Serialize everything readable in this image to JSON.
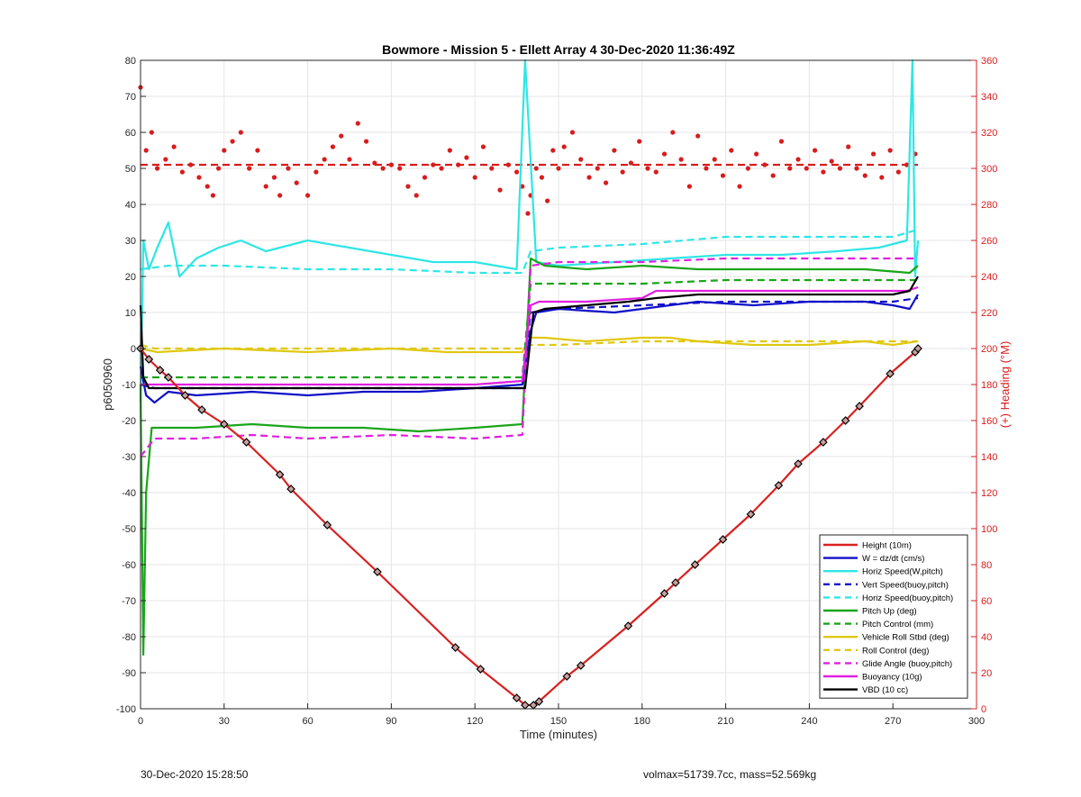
{
  "chart_data": {
    "type": "line",
    "title": "Bowmore - Mission 5 - Ellett Array 4 30-Dec-2020 11:36:49Z",
    "xlabel": "Time (minutes)",
    "ylabel_left": "p6050960",
    "ylabel_right": "(+) Heading (°M)",
    "xlim": [
      0,
      300
    ],
    "ylim_left": [
      -100,
      80
    ],
    "ylim_right": [
      0,
      360
    ],
    "xticks": [
      0,
      30,
      60,
      90,
      120,
      150,
      180,
      210,
      240,
      270,
      300
    ],
    "yticks_left": [
      -100,
      -90,
      -80,
      -70,
      -60,
      -50,
      -40,
      -30,
      -20,
      -10,
      0,
      10,
      20,
      30,
      40,
      50,
      60,
      70,
      80
    ],
    "yticks_right": [
      0,
      20,
      40,
      60,
      80,
      100,
      120,
      140,
      160,
      180,
      200,
      220,
      240,
      260,
      280,
      300,
      320,
      340,
      360
    ],
    "grid": true,
    "legend_position": "bottom-right",
    "colors": {
      "height": "#d92020",
      "w": "#1010c8",
      "horiz": "#2ee6e6",
      "pitch": "#1aa51a",
      "roll": "#e0c812",
      "glide": "#e020e0",
      "vbd": "#000000",
      "heading": "#d81c1c",
      "right_axis": "#d81c1c"
    },
    "series": [
      {
        "name": "Height (10m)",
        "style": "solid",
        "color": "#d92020",
        "x": [
          0,
          3,
          7,
          10,
          16,
          22,
          30,
          38,
          50,
          54,
          67,
          85,
          113,
          122,
          135,
          138,
          141,
          143,
          153,
          158,
          175,
          188,
          192,
          199,
          209,
          219,
          229,
          236,
          245,
          253,
          258,
          269,
          278,
          279
        ],
        "y": [
          0,
          -3,
          -6,
          -8,
          -13,
          -17,
          -21,
          -26,
          -35,
          -39,
          -49,
          -62,
          -83,
          -89,
          -97,
          -99,
          -99,
          -98,
          -91,
          -88,
          -77,
          -68,
          -65,
          -60,
          -53,
          -46,
          -38,
          -32,
          -26,
          -20,
          -16,
          -7,
          -1,
          0
        ]
      },
      {
        "name": "W = dz/dt (cm/s)",
        "style": "solid",
        "color": "#1010c8",
        "x": [
          0,
          2,
          5,
          10,
          20,
          40,
          60,
          80,
          100,
          120,
          137,
          140,
          142,
          150,
          170,
          190,
          200,
          220,
          240,
          260,
          270,
          276,
          279
        ],
        "y": [
          -5,
          -13,
          -15,
          -12,
          -13,
          -12,
          -13,
          -12,
          -12,
          -11,
          -10,
          5,
          10,
          11,
          10,
          12,
          13,
          12,
          13,
          13,
          12,
          11,
          15
        ]
      },
      {
        "name": "Horiz Speed(W,pitch)",
        "style": "solid",
        "color": "#2ee6e6",
        "x": [
          0,
          1,
          3,
          6,
          10,
          14,
          20,
          28,
          36,
          45,
          60,
          75,
          90,
          105,
          120,
          135,
          138,
          142,
          150,
          170,
          190,
          210,
          230,
          250,
          265,
          275,
          277,
          278,
          279
        ],
        "y": [
          -15,
          30,
          22,
          28,
          35,
          20,
          25,
          28,
          30,
          27,
          30,
          28,
          26,
          24,
          24,
          22,
          80,
          24,
          23,
          24,
          25,
          26,
          26,
          27,
          28,
          30,
          80,
          20,
          30
        ]
      },
      {
        "name": "Vert Speed(buoy,pitch)",
        "style": "dashed",
        "color": "#1010c8",
        "x": [
          0,
          5,
          30,
          60,
          90,
          120,
          137,
          140,
          150,
          180,
          210,
          240,
          270,
          279
        ],
        "y": [
          -10,
          -11,
          -11,
          -11,
          -11,
          -11,
          -11,
          10,
          11,
          12,
          13,
          13,
          13,
          14
        ]
      },
      {
        "name": "Horiz Speed(buoy,pitch)",
        "style": "dashed",
        "color": "#2ee6e6",
        "x": [
          0,
          10,
          30,
          60,
          90,
          120,
          137,
          140,
          150,
          180,
          210,
          240,
          270,
          279
        ],
        "y": [
          22,
          23,
          23,
          22,
          22,
          21,
          21,
          27,
          28,
          29,
          31,
          31,
          31,
          33
        ]
      },
      {
        "name": "Pitch Up (deg)",
        "style": "solid",
        "color": "#1aa51a",
        "x": [
          0,
          1,
          2,
          4,
          8,
          20,
          40,
          60,
          80,
          100,
          120,
          137,
          140,
          145,
          160,
          180,
          200,
          220,
          240,
          260,
          276,
          279
        ],
        "y": [
          -10,
          -85,
          -40,
          -22,
          -22,
          -22,
          -21,
          -22,
          -22,
          -23,
          -22,
          -21,
          25,
          23,
          22,
          23,
          22,
          22,
          22,
          22,
          21,
          23
        ]
      },
      {
        "name": "Pitch Control (mm)",
        "style": "dashed",
        "color": "#1aa51a",
        "x": [
          0,
          5,
          30,
          60,
          90,
          120,
          137,
          140,
          150,
          180,
          210,
          240,
          270,
          279
        ],
        "y": [
          -8,
          -8,
          -8,
          -8,
          -8,
          -8,
          -8,
          18,
          18,
          18,
          19,
          19,
          19,
          19
        ]
      },
      {
        "name": "Vehicle Roll Stbd (deg)",
        "style": "solid",
        "color": "#e0c812",
        "x": [
          0,
          6,
          30,
          60,
          90,
          110,
          137,
          140,
          145,
          160,
          180,
          190,
          200,
          220,
          240,
          260,
          270,
          279
        ],
        "y": [
          0,
          -1,
          0,
          -1,
          0,
          -1,
          -1,
          3,
          3,
          2,
          3,
          3,
          2,
          1,
          1,
          2,
          1,
          2
        ]
      },
      {
        "name": "Roll Control (deg)",
        "style": "dashed",
        "color": "#e0c812",
        "x": [
          0,
          5,
          30,
          60,
          90,
          120,
          137,
          140,
          150,
          180,
          210,
          240,
          270,
          279
        ],
        "y": [
          1,
          0,
          0,
          0,
          0,
          0,
          0,
          1,
          1,
          2,
          2,
          2,
          2,
          2
        ]
      },
      {
        "name": "Glide Angle (buoy,pitch)",
        "style": "dashed",
        "color": "#e020e0",
        "x": [
          0,
          5,
          20,
          40,
          60,
          90,
          120,
          137,
          140,
          150,
          180,
          210,
          240,
          270,
          279
        ],
        "y": [
          -30,
          -25,
          -25,
          -24,
          -25,
          -24,
          -25,
          -24,
          23,
          24,
          24,
          25,
          25,
          25,
          25
        ]
      },
      {
        "name": "Buoyancy (10g)",
        "style": "solid",
        "color": "#e020e0",
        "x": [
          0,
          2,
          10,
          60,
          100,
          120,
          137,
          140,
          143,
          160,
          180,
          185,
          220,
          260,
          275,
          279
        ],
        "y": [
          -10,
          -10,
          -10,
          -10,
          -10,
          -10,
          -9,
          12,
          13,
          13,
          14,
          16,
          16,
          16,
          16,
          17
        ]
      },
      {
        "name": "VBD (10 cc)",
        "style": "solid",
        "color": "#000000",
        "x": [
          0,
          1,
          3,
          10,
          50,
          100,
          137,
          138,
          141,
          145,
          175,
          185,
          200,
          270,
          276,
          279
        ],
        "y": [
          12,
          -8,
          -11,
          -11,
          -11,
          -11,
          -11,
          -11,
          10,
          11,
          13,
          14,
          15,
          15,
          16,
          20
        ]
      },
      {
        "name": "Heading",
        "axis": "right",
        "style": "points",
        "color": "#d81c1c",
        "x": [
          0,
          2,
          4,
          6,
          9,
          12,
          15,
          18,
          21,
          24,
          26,
          28,
          30,
          33,
          36,
          39,
          42,
          45,
          48,
          50,
          53,
          56,
          60,
          63,
          66,
          69,
          72,
          75,
          78,
          81,
          84,
          87,
          90,
          93,
          96,
          99,
          102,
          105,
          108,
          111,
          114,
          117,
          120,
          123,
          126,
          129,
          132,
          135,
          137,
          139,
          140,
          142,
          144,
          146,
          148,
          150,
          152,
          155,
          158,
          161,
          164,
          167,
          170,
          173,
          176,
          179,
          182,
          185,
          188,
          191,
          194,
          197,
          200,
          203,
          206,
          209,
          212,
          215,
          218,
          221,
          224,
          227,
          230,
          233,
          236,
          239,
          242,
          245,
          248,
          251,
          254,
          257,
          260,
          263,
          266,
          269,
          272,
          275,
          278
        ],
        "y": [
          345,
          310,
          320,
          300,
          305,
          312,
          298,
          302,
          295,
          290,
          285,
          300,
          310,
          315,
          320,
          300,
          310,
          290,
          295,
          285,
          300,
          292,
          285,
          298,
          305,
          312,
          318,
          305,
          325,
          315,
          303,
          300,
          302,
          300,
          290,
          285,
          295,
          302,
          300,
          310,
          302,
          306,
          295,
          312,
          300,
          288,
          302,
          298,
          290,
          275,
          285,
          300,
          295,
          282,
          310,
          300,
          312,
          320,
          305,
          295,
          300,
          292,
          310,
          298,
          303,
          315,
          300,
          298,
          308,
          320,
          305,
          290,
          318,
          300,
          305,
          296,
          310,
          290,
          300,
          308,
          302,
          296,
          315,
          300,
          305,
          300,
          310,
          298,
          304,
          300,
          312,
          300,
          296,
          308,
          295,
          310,
          298,
          302,
          308
        ]
      },
      {
        "name": "Heading reference",
        "axis": "right",
        "style": "dashed",
        "color": "#d81c1c",
        "x": [
          0,
          279
        ],
        "y": [
          302,
          302
        ]
      }
    ]
  },
  "footer": {
    "left": "30-Dec-2020 15:28:50",
    "right": "volmax=51739.7cc, mass=52.569kg"
  }
}
